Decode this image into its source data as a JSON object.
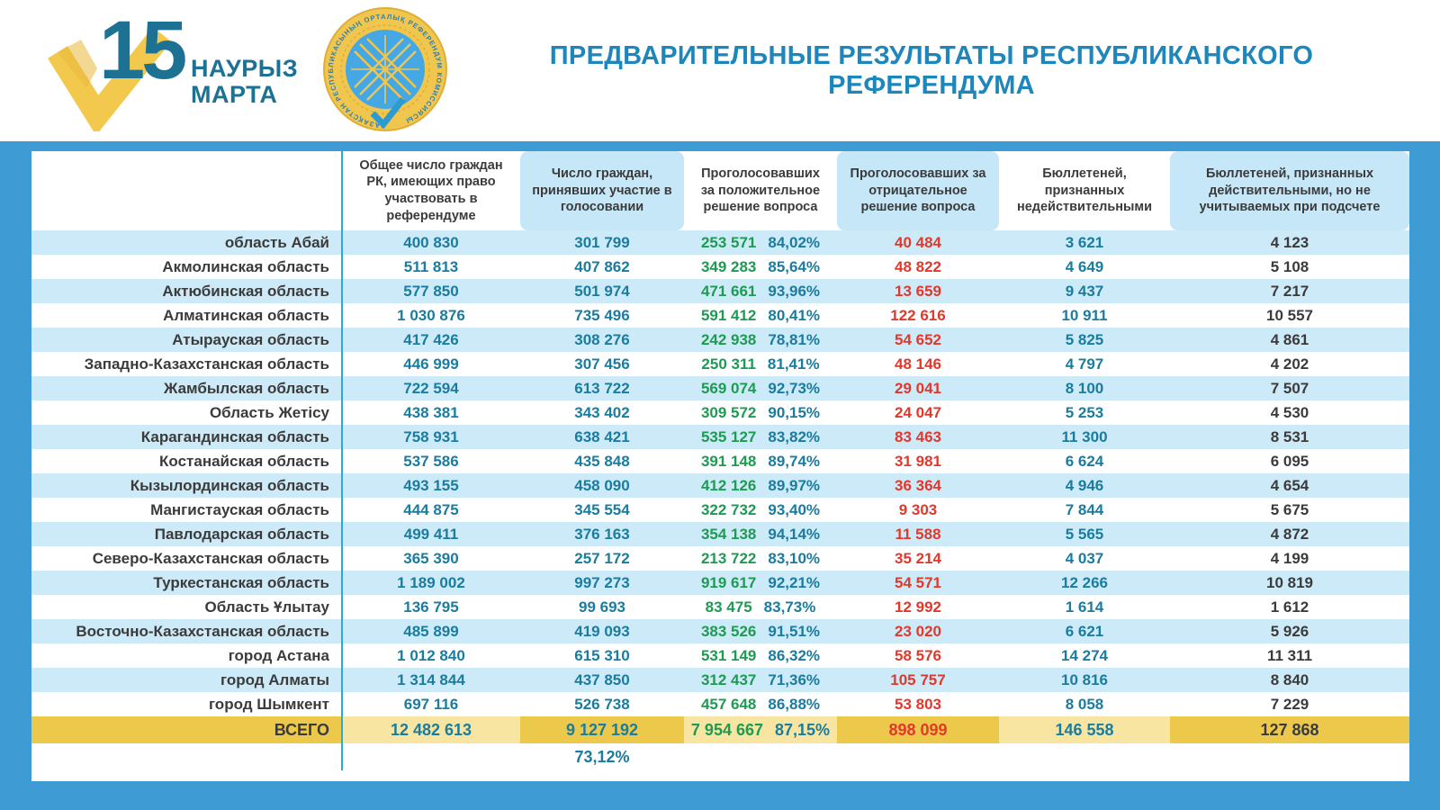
{
  "banner": {
    "logo": {
      "day": "15",
      "month_line1": "НАУРЫЗ",
      "month_line2": "МАРТА"
    },
    "seal": {
      "ring_text": "ҚАЗАҚСТАН РЕСПУБЛИКАСЫНЫҢ ОРТАЛЫҚ РЕФЕРЕНДУМ КОМИССИЯСЫ"
    },
    "title": "ПРЕДВАРИТЕЛЬНЫЕ РЕЗУЛЬТАТЫ РЕСПУБЛИКАНСКОГО РЕФЕРЕНДУМА"
  },
  "colors": {
    "frame_blue": "#3E9BD3",
    "row_blue": "#CDEAF8",
    "header_tint_blue": "#C5E7F7",
    "teal_number": "#1A7C9F",
    "green_number": "#1E9B53",
    "red_number": "#E2382C",
    "gold_dark": "#EDC94B",
    "gold_light": "#F7E5A1",
    "title_blue": "#1D87BC"
  },
  "table": {
    "columns": [
      "Общее число граждан РК, имеющих право участвовать в референдуме",
      "Число граждан, принявших участие в голосовании",
      "Проголосовавших за положительное решение вопроса",
      "Проголосовавших за отрицательное решение вопроса",
      "Бюллетеней, признанных недействительными",
      "Бюллетеней, признанных действительными, но не учитываемых при подсчете"
    ],
    "rows": [
      {
        "region": "область Абай",
        "eligible": "400 830",
        "participated": "301 799",
        "yes": "253 571",
        "yes_pct": "84,02%",
        "no": "40 484",
        "invalid": "3 621",
        "valid_not_counted": "4 123"
      },
      {
        "region": "Акмолинская область",
        "eligible": "511 813",
        "participated": "407 862",
        "yes": "349 283",
        "yes_pct": "85,64%",
        "no": "48 822",
        "invalid": "4 649",
        "valid_not_counted": "5 108"
      },
      {
        "region": "Актюбинская область",
        "eligible": "577 850",
        "participated": "501 974",
        "yes": "471 661",
        "yes_pct": "93,96%",
        "no": "13 659",
        "invalid": "9 437",
        "valid_not_counted": "7 217"
      },
      {
        "region": "Алматинская область",
        "eligible": "1 030 876",
        "participated": "735 496",
        "yes": "591 412",
        "yes_pct": "80,41%",
        "no": "122 616",
        "invalid": "10 911",
        "valid_not_counted": "10 557"
      },
      {
        "region": "Атырауская область",
        "eligible": "417 426",
        "participated": "308 276",
        "yes": "242 938",
        "yes_pct": "78,81%",
        "no": "54 652",
        "invalid": "5 825",
        "valid_not_counted": "4 861"
      },
      {
        "region": "Западно-Казахстанская область",
        "eligible": "446 999",
        "participated": "307 456",
        "yes": "250 311",
        "yes_pct": "81,41%",
        "no": "48 146",
        "invalid": "4 797",
        "valid_not_counted": "4 202"
      },
      {
        "region": "Жамбылская область",
        "eligible": "722 594",
        "participated": "613 722",
        "yes": "569 074",
        "yes_pct": "92,73%",
        "no": "29 041",
        "invalid": "8 100",
        "valid_not_counted": "7 507"
      },
      {
        "region": "Область Жетісу",
        "eligible": "438 381",
        "participated": "343 402",
        "yes": "309 572",
        "yes_pct": "90,15%",
        "no": "24 047",
        "invalid": "5 253",
        "valid_not_counted": "4 530"
      },
      {
        "region": "Карагандинская область",
        "eligible": "758 931",
        "participated": "638 421",
        "yes": "535 127",
        "yes_pct": "83,82%",
        "no": "83 463",
        "invalid": "11 300",
        "valid_not_counted": "8 531"
      },
      {
        "region": "Костанайская область",
        "eligible": "537 586",
        "participated": "435 848",
        "yes": "391 148",
        "yes_pct": "89,74%",
        "no": "31 981",
        "invalid": "6 624",
        "valid_not_counted": "6 095"
      },
      {
        "region": "Кызылординская область",
        "eligible": "493 155",
        "participated": "458 090",
        "yes": "412 126",
        "yes_pct": "89,97%",
        "no": "36 364",
        "invalid": "4 946",
        "valid_not_counted": "4 654"
      },
      {
        "region": "Мангистауская область",
        "eligible": "444 875",
        "participated": "345 554",
        "yes": "322 732",
        "yes_pct": "93,40%",
        "no": "9 303",
        "invalid": "7 844",
        "valid_not_counted": "5 675"
      },
      {
        "region": "Павлодарская область",
        "eligible": "499 411",
        "participated": "376 163",
        "yes": "354 138",
        "yes_pct": "94,14%",
        "no": "11 588",
        "invalid": "5 565",
        "valid_not_counted": "4 872"
      },
      {
        "region": "Северо-Казахстанская область",
        "eligible": "365 390",
        "participated": "257 172",
        "yes": "213 722",
        "yes_pct": "83,10%",
        "no": "35 214",
        "invalid": "4 037",
        "valid_not_counted": "4 199"
      },
      {
        "region": "Туркестанская область",
        "eligible": "1 189 002",
        "participated": "997 273",
        "yes": "919 617",
        "yes_pct": "92,21%",
        "no": "54 571",
        "invalid": "12 266",
        "valid_not_counted": "10 819"
      },
      {
        "region": "Область Ұлытау",
        "eligible": "136 795",
        "participated": "99 693",
        "yes": "83 475",
        "yes_pct": "83,73%",
        "no": "12 992",
        "invalid": "1 614",
        "valid_not_counted": "1 612"
      },
      {
        "region": "Восточно-Казахстанская область",
        "eligible": "485 899",
        "participated": "419 093",
        "yes": "383 526",
        "yes_pct": "91,51%",
        "no": "23 020",
        "invalid": "6 621",
        "valid_not_counted": "5 926"
      },
      {
        "region": "город Астана",
        "eligible": "1 012 840",
        "participated": "615 310",
        "yes": "531 149",
        "yes_pct": "86,32%",
        "no": "58 576",
        "invalid": "14 274",
        "valid_not_counted": "11 311"
      },
      {
        "region": "город Алматы",
        "eligible": "1 314 844",
        "participated": "437 850",
        "yes": "312 437",
        "yes_pct": "71,36%",
        "no": "105 757",
        "invalid": "10 816",
        "valid_not_counted": "8 840"
      },
      {
        "region": "город Шымкент",
        "eligible": "697 116",
        "participated": "526 738",
        "yes": "457 648",
        "yes_pct": "86,88%",
        "no": "53 803",
        "invalid": "8 058",
        "valid_not_counted": "7 229"
      }
    ],
    "total": {
      "label": "ВСЕГО",
      "eligible": "12 482 613",
      "participated": "9 127 192",
      "yes": "7 954 667",
      "yes_pct": "87,15%",
      "no": "898 099",
      "invalid": "146 558",
      "valid_not_counted": "127 868"
    },
    "turnout_pct": "73,12%"
  }
}
